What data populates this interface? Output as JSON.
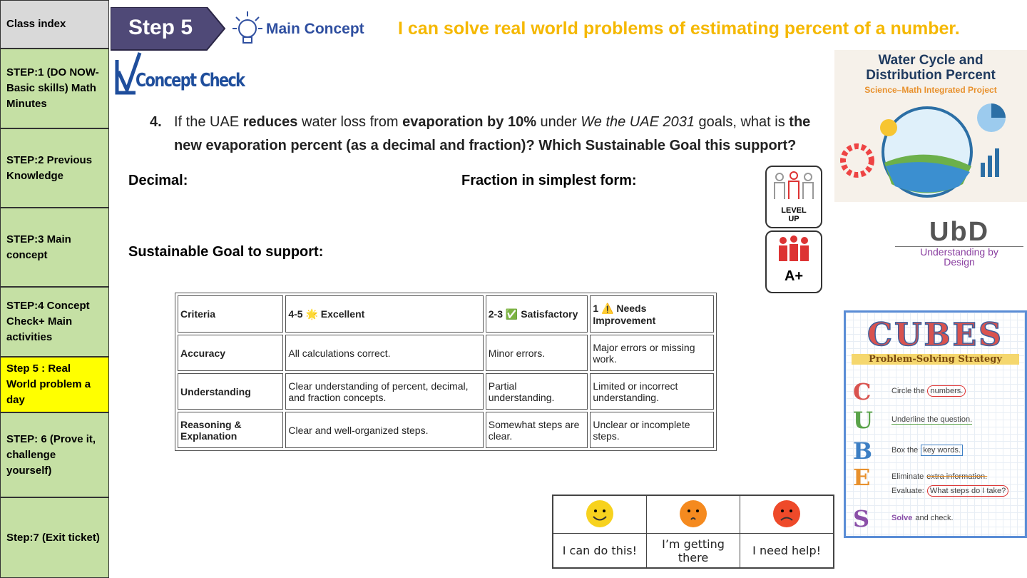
{
  "sidebar": {
    "items": [
      {
        "text": "Class index",
        "active": false,
        "color": "#d9d9d9"
      },
      {
        "text": "STEP:1 (DO NOW-Basic skills) Math Minutes",
        "color": "#c5e0a4"
      },
      {
        "text": "STEP:2 Previous Knowledge",
        "color": "#c5e0a4"
      },
      {
        "text": "STEP:3 Main concept",
        "color": "#c5e0a4"
      },
      {
        "text": "STEP:4 Concept Check+ Main activities",
        "color": "#c5e0a4"
      },
      {
        "text": "Step 5 : Real World problem a day",
        "color": "#ffff00"
      },
      {
        "text": "STEP: 6 (Prove it, challenge yourself)",
        "color": "#c5e0a4"
      },
      {
        "text": "Step:7 (Exit ticket)",
        "color": "#c5e0a4"
      }
    ]
  },
  "header": {
    "step": "Step 5",
    "concept": "Main Concept",
    "objective": "I can solve real world problems of estimating percent of a number."
  },
  "concept_check": "Concept Check",
  "question": {
    "number": "4.",
    "segments": [
      {
        "text": "If the UAE ",
        "style": "normal"
      },
      {
        "text": "reduces",
        "style": "bold"
      },
      {
        "text": " water loss from ",
        "style": "normal"
      },
      {
        "text": "evaporation by 10%",
        "style": "bold"
      },
      {
        "text": " under ",
        "style": "normal"
      },
      {
        "text": "We the UAE 2031",
        "style": "italic"
      },
      {
        "text": " goals, what is ",
        "style": "normal"
      },
      {
        "text": "the new evaporation percent (as a decimal and fraction)? Which Sustainable Goal this support?",
        "style": "bold"
      }
    ]
  },
  "answers": {
    "decimal": "Decimal:",
    "fraction": "Fraction in simplest form:",
    "goal": "Sustainable Goal to support:"
  },
  "badges": {
    "level_up": "LEVEL UP",
    "a_plus": "A+"
  },
  "rubric": {
    "header": [
      "Criteria",
      "4-5 🌟 Excellent",
      "2-3 ✅ Satisfactory",
      "1 ⚠️ Needs Improvement"
    ],
    "rows": [
      [
        "Accuracy",
        "All calculations correct.",
        "Minor errors.",
        "Major errors or missing work."
      ],
      [
        "Understanding",
        "Clear understanding of percent, decimal, and fraction concepts.",
        "Partial understanding.",
        "Limited or incorrect understanding."
      ],
      [
        "Reasoning & Explanation",
        "Clear and well-organized steps.",
        "Somewhat steps are clear.",
        "Unclear or incomplete steps."
      ]
    ]
  },
  "feedback": [
    "I can do this!",
    "I’m getting there",
    "I need help!"
  ],
  "water_card": {
    "title": "Water Cycle and Distribution Percent",
    "subtitle": "Science–Math Integrated Project"
  },
  "ubd": {
    "title": "UbD",
    "subtitle": "Understanding by Design"
  },
  "cubes": {
    "title": "CUBES",
    "subtitle": "Problem-Solving Strategy",
    "steps": [
      {
        "letter": "C",
        "color": "#d9534f",
        "lines": [
          [
            {
              "text": "Circle the",
              "mark": "none"
            },
            {
              "text": "numbers.",
              "mark": "circle"
            }
          ]
        ]
      },
      {
        "letter": "U",
        "color": "#5aa34a",
        "lines": [
          [
            {
              "text": "Underline the question.",
              "mark": "underline"
            }
          ]
        ]
      },
      {
        "letter": "B",
        "color": "#3d7fc4",
        "lines": [
          [
            {
              "text": "Box the",
              "mark": "none"
            },
            {
              "text": "key words.",
              "mark": "box"
            }
          ]
        ]
      },
      {
        "letter": "E",
        "color": "#e8912d",
        "lines": [
          [
            {
              "text": "Eliminate",
              "mark": "none"
            },
            {
              "text": "extra information.",
              "mark": "strike"
            }
          ],
          [
            {
              "text": "Evaluate:",
              "mark": "none"
            },
            {
              "text": "What steps do I take?",
              "mark": "circle"
            }
          ]
        ]
      },
      {
        "letter": "S",
        "color": "#8a4fa8",
        "lines": [
          [
            {
              "text": "Solve",
              "mark": "bold"
            },
            {
              "text": "and check.",
              "mark": "none"
            }
          ]
        ]
      }
    ]
  }
}
